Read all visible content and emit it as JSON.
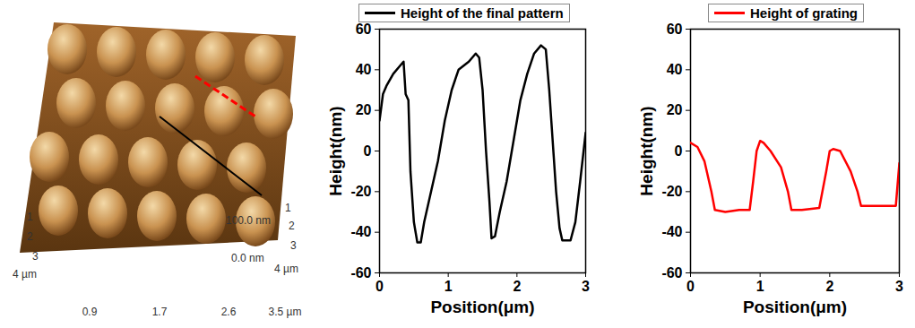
{
  "image_panel": {
    "type": "afm_image",
    "left_ticks": [
      "1",
      "2",
      "3",
      "4 µm"
    ],
    "bottom_ticks": [
      "0.9",
      "1.7",
      "2.6",
      "3.5 µm"
    ],
    "right_ticks": [
      "1",
      "2",
      "3",
      "4 µm"
    ],
    "z_ticks": [
      "100.0 nm",
      "0.0 nm"
    ]
  },
  "chart_data": [
    {
      "type": "line",
      "xlabel": "Position(μm)",
      "ylabel": "Height(nm)",
      "legend": "top",
      "xlim": [
        0,
        3
      ],
      "xticks": [
        0,
        1,
        2,
        3
      ],
      "ylim": [
        -60,
        60
      ],
      "yticks": [
        -60,
        -40,
        -20,
        0,
        20,
        40,
        60
      ],
      "series": [
        {
          "name": "Height of the final pattern",
          "color": "#000000",
          "x": [
            0,
            0.05,
            0.1,
            0.2,
            0.3,
            0.35,
            0.38,
            0.42,
            0.45,
            0.5,
            0.55,
            0.6,
            0.65,
            0.75,
            0.85,
            0.95,
            1.05,
            1.15,
            1.3,
            1.4,
            1.45,
            1.5,
            1.55,
            1.6,
            1.63,
            1.68,
            1.75,
            1.85,
            1.95,
            2.05,
            2.15,
            2.25,
            2.35,
            2.42,
            2.47,
            2.52,
            2.57,
            2.62,
            2.66,
            2.7,
            2.78,
            2.85,
            2.92,
            2.97,
            3.0
          ],
          "values": [
            15,
            28,
            32,
            38,
            42,
            44,
            28,
            25,
            -10,
            -35,
            -45,
            -45,
            -35,
            -20,
            -5,
            15,
            30,
            40,
            44,
            48,
            46,
            30,
            0,
            -25,
            -43,
            -42,
            -30,
            -15,
            5,
            25,
            38,
            48,
            52,
            50,
            30,
            5,
            -20,
            -38,
            -44,
            -44,
            -44,
            -35,
            -15,
            0,
            9
          ]
        }
      ]
    },
    {
      "type": "line",
      "xlabel": "Position(μm)",
      "ylabel": "Height(nm)",
      "legend": "top",
      "xlim": [
        0,
        3
      ],
      "xticks": [
        0,
        1,
        2,
        3
      ],
      "ylim": [
        -60,
        60
      ],
      "yticks": [
        -60,
        -40,
        -20,
        0,
        20,
        40,
        60
      ],
      "series": [
        {
          "name": "Height of grating",
          "color": "#ff0000",
          "x": [
            0,
            0.1,
            0.2,
            0.3,
            0.35,
            0.5,
            0.7,
            0.85,
            0.9,
            0.95,
            1.0,
            1.05,
            1.15,
            1.3,
            1.4,
            1.45,
            1.6,
            1.85,
            1.95,
            2.0,
            2.05,
            2.15,
            2.3,
            2.4,
            2.45,
            2.6,
            2.95,
            3.0
          ],
          "values": [
            4,
            2,
            -5,
            -20,
            -29,
            -30,
            -29,
            -29,
            -15,
            0,
            5,
            4,
            0,
            -8,
            -20,
            -29,
            -29,
            -28,
            -10,
            0,
            1,
            0,
            -10,
            -20,
            -27,
            -27,
            -27,
            -6
          ]
        }
      ]
    }
  ]
}
